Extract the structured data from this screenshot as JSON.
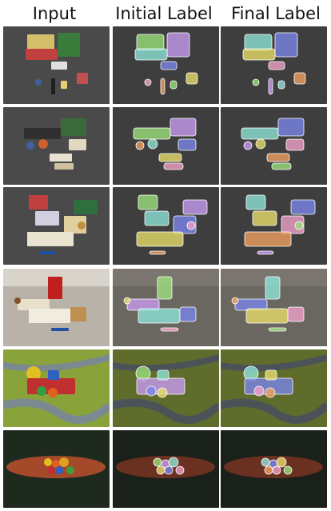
{
  "headers": {
    "input": "Input",
    "initial": "Initial Label",
    "final": "Final Label"
  },
  "rows": [
    {
      "id": "r1",
      "scene": "cluttered-objects-dark-table"
    },
    {
      "id": "r2",
      "scene": "cluttered-objects-dark-table"
    },
    {
      "id": "r3",
      "scene": "objects-with-keyboard"
    },
    {
      "id": "r4",
      "scene": "objects-on-light-desk"
    },
    {
      "id": "r5",
      "scene": "toys-on-playmat"
    },
    {
      "id": "r6",
      "scene": "toys-on-red-rug"
    }
  ],
  "colors": {
    "dark_bg": "#4a4a4a",
    "dark_bg_label": "#3e3e3e",
    "desk_bg": "#b9b2a8",
    "mat_green": "#8aa23a",
    "mat_road": "#7a8a90",
    "rug_dark": "#1f2a1f",
    "rug_red": "#a44a2a",
    "mask_green": "#9be07a",
    "mask_purple": "#c79bf0",
    "mask_cyan": "#8fe3d6",
    "mask_blue": "#7a86e8",
    "mask_yellow": "#e6dc6a",
    "mask_pink": "#f0a0c8",
    "mask_orange": "#f0a060"
  }
}
